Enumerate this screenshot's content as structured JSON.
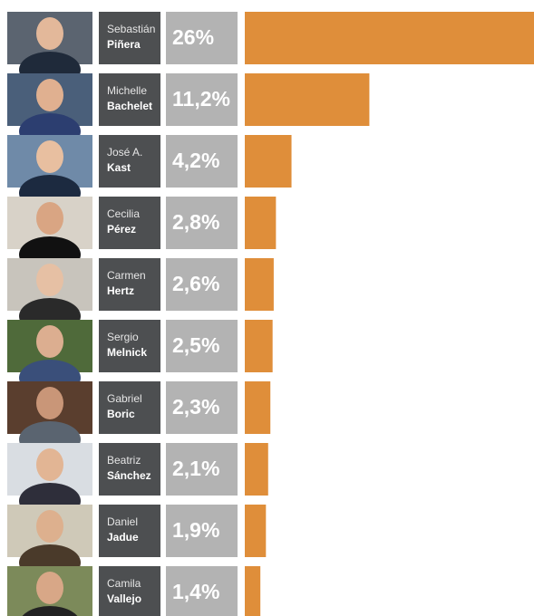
{
  "chart_data": {
    "type": "bar",
    "orientation": "horizontal",
    "first_names": [
      "Sebastián",
      "Michelle",
      "José A.",
      "Cecilia",
      "Carmen",
      "Sergio",
      "Gabriel",
      "Beatriz",
      "Daniel",
      "Camila"
    ],
    "last_names": [
      "Piñera",
      "Bachelet",
      "Kast",
      "Pérez",
      "Hertz",
      "Melnick",
      "Boric",
      "Sánchez",
      "Jadue",
      "Vallejo"
    ],
    "values": [
      26,
      11.2,
      4.2,
      2.8,
      2.6,
      2.5,
      2.3,
      2.1,
      1.9,
      1.4
    ],
    "value_labels": [
      "26%",
      "11,2%",
      "4,2%",
      "2,8%",
      "2,6%",
      "2,5%",
      "2,3%",
      "2,1%",
      "1,9%",
      "1,4%"
    ],
    "color": "#df8e3a"
  }
}
